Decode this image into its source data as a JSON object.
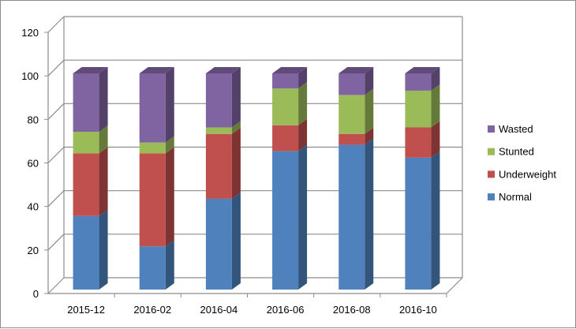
{
  "chart_data": {
    "type": "bar",
    "stacked": true,
    "three_d": true,
    "title": "",
    "xlabel": "",
    "ylabel": "",
    "ylim": [
      0,
      120
    ],
    "yticks": [
      0,
      20,
      40,
      60,
      80,
      100,
      120
    ],
    "grid": true,
    "legend_position": "right",
    "categories": [
      "2015-12",
      "2016-02",
      "2016-04",
      "2016-06",
      "2016-08",
      "2016-10"
    ],
    "series": [
      {
        "name": "Normal",
        "color": "#4f81bd",
        "values": [
          34,
          20,
          42,
          64,
          67,
          61
        ]
      },
      {
        "name": "Underweight",
        "color": "#c0504d",
        "values": [
          29,
          43,
          30,
          12,
          5,
          14
        ]
      },
      {
        "name": "Stunted",
        "color": "#9bbb59",
        "values": [
          10,
          5,
          3,
          17,
          18,
          17
        ]
      },
      {
        "name": "Wasted",
        "color": "#8064a2",
        "values": [
          27,
          32,
          25,
          7,
          10,
          8
        ]
      }
    ]
  }
}
